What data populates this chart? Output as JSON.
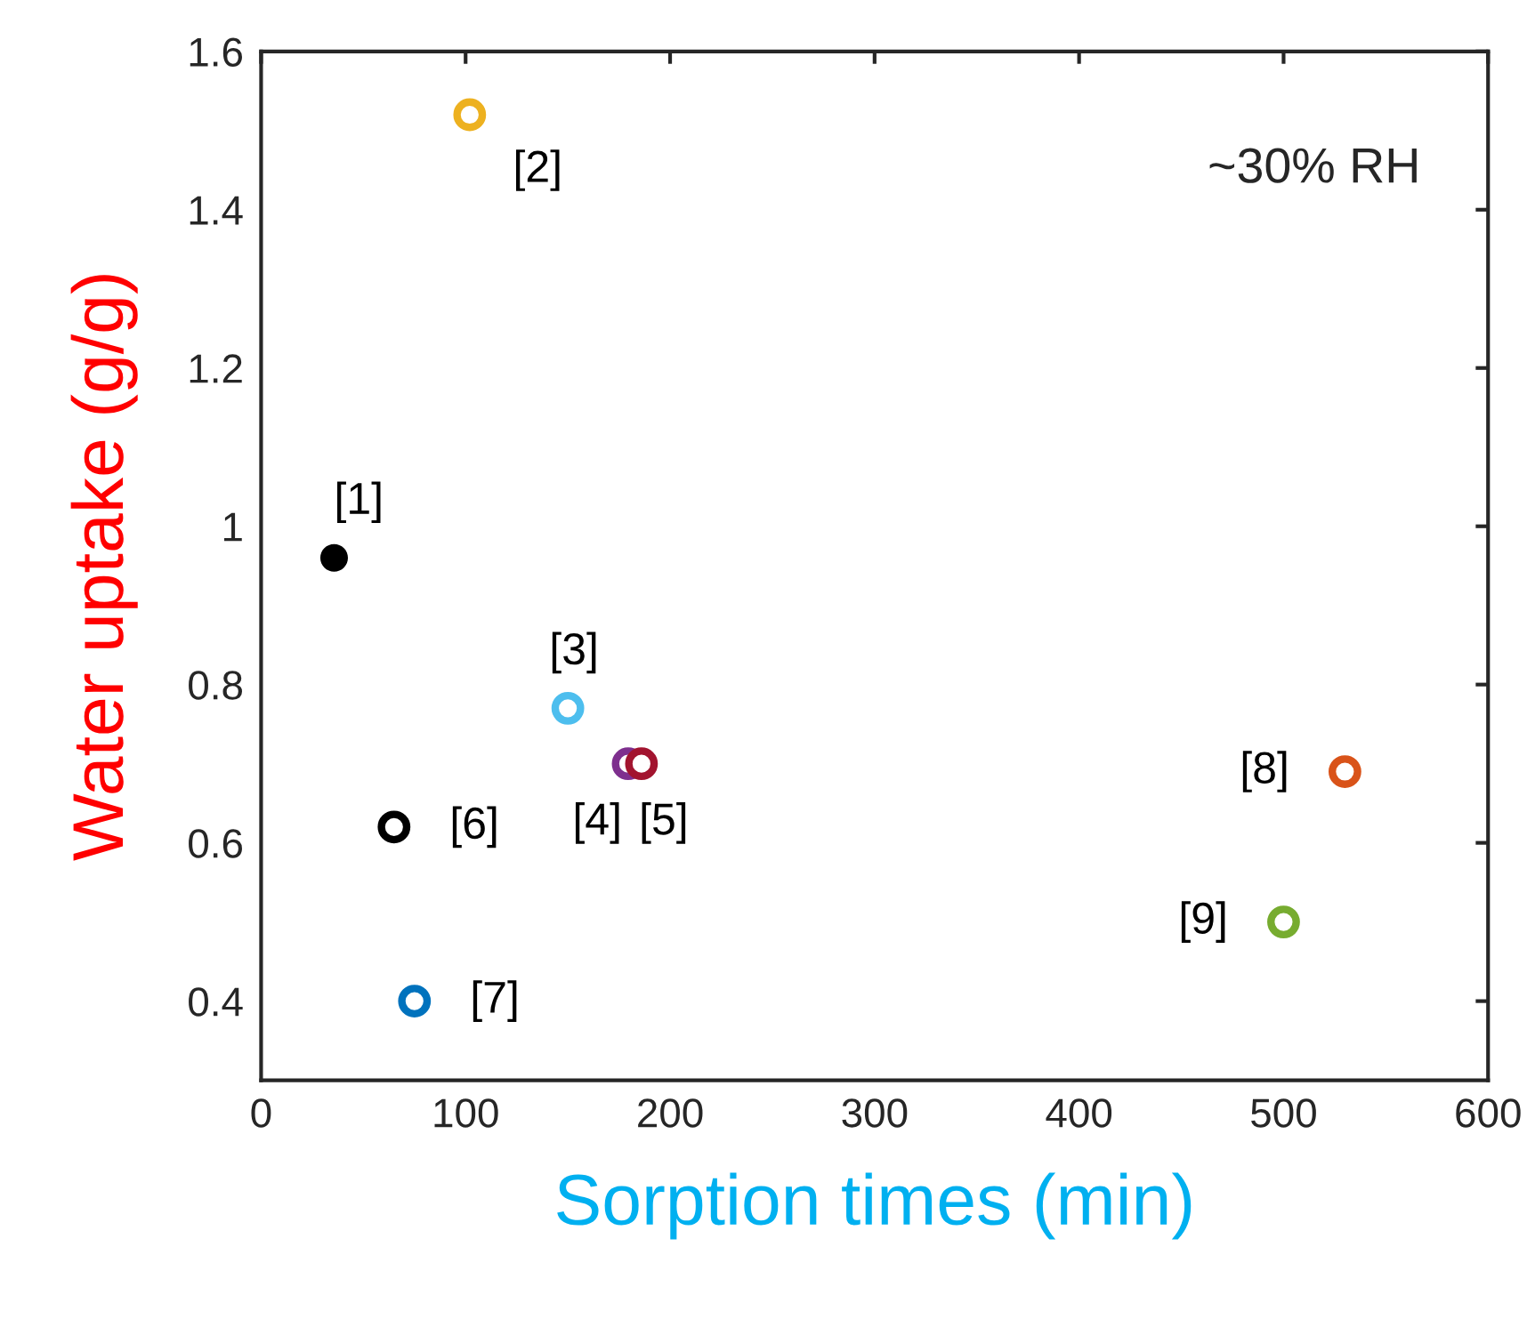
{
  "chart_data": {
    "type": "scatter",
    "xlabel": "Sorption times (min)",
    "ylabel": "Water uptake (g/g)",
    "xlim": [
      0,
      600
    ],
    "ylim": [
      0.3,
      1.6
    ],
    "xticks": [
      0,
      100,
      200,
      300,
      400,
      500,
      600
    ],
    "yticks": [
      0.4,
      0.6,
      0.8,
      1,
      1.2,
      1.4,
      1.6
    ],
    "marker": "circle",
    "grid": false,
    "legend": false,
    "annotations": [
      "~30% RH"
    ],
    "series": [
      {
        "name": "[1]",
        "color": "#000000",
        "x": [
          35.7
        ],
        "values": [
          0.96
        ]
      },
      {
        "name": "[2]",
        "color": "#edb120",
        "x": [
          102
        ],
        "values": [
          1.52
        ]
      },
      {
        "name": "[3]",
        "color": "#4dbeee",
        "x": [
          150
        ],
        "values": [
          0.77
        ]
      },
      {
        "name": "[4]",
        "color": "#7e2f8e",
        "x": [
          179.5
        ],
        "values": [
          0.7
        ]
      },
      {
        "name": "[5]",
        "color": "#a2142f",
        "x": [
          186
        ],
        "values": [
          0.7
        ]
      },
      {
        "name": "[6]",
        "color": "#000000",
        "x": [
          65
        ],
        "values": [
          0.62
        ]
      },
      {
        "name": "[7]",
        "color": "#0072bd",
        "x": [
          75
        ],
        "values": [
          0.4
        ]
      },
      {
        "name": "[8]",
        "color": "#d95319",
        "x": [
          530
        ],
        "values": [
          0.69
        ]
      },
      {
        "name": "[9]",
        "color": "#77ac30",
        "x": [
          500
        ],
        "values": [
          0.5
        ]
      }
    ]
  }
}
